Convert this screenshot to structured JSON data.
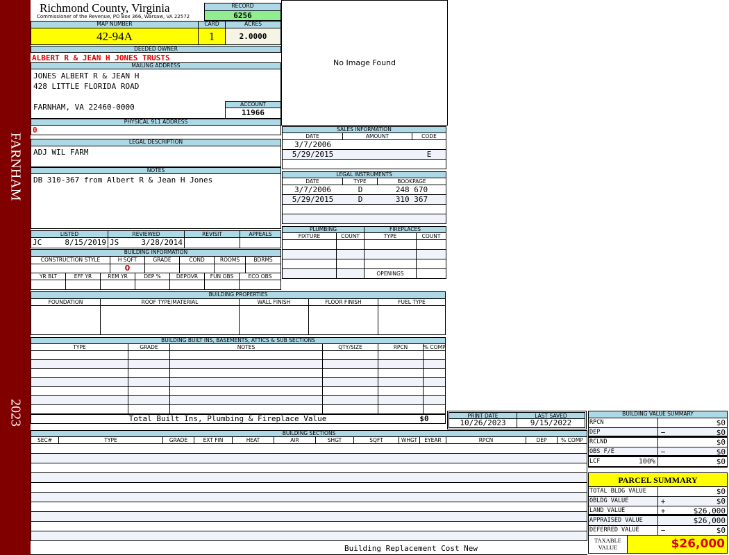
{
  "side": {
    "town": "FARNHAM",
    "year": "2023"
  },
  "header": {
    "county": "Richmond County, Virginia",
    "office": "Commissioner of the Revenue, PO Box 366, Warsaw, VA 22572",
    "record_label": "RECORD",
    "record": "6256"
  },
  "parcel": {
    "map_label": "MAP NUMBER",
    "map": "42-94A",
    "card_label": "CARD",
    "card": "1",
    "acres_label": "ACRES",
    "acres": "2.0000"
  },
  "owner": {
    "label": "DEEDED OWNER",
    "value": "ALBERT R & JEAN H JONES TRUSTS"
  },
  "mailing": {
    "label": "MAILING ADDRESS",
    "line1": "JONES ALBERT R & JEAN H",
    "line2": "428 LITTLE FLORIDA ROAD",
    "line3": "FARNHAM, VA 22460-0000",
    "account_label": "ACCOUNT",
    "account": "11966"
  },
  "physical": {
    "label": "PHYSICAL 911 ADDRESS",
    "value": "0"
  },
  "image": {
    "text": "No Image Found"
  },
  "legal": {
    "label": "LEGAL DESCRIPTION",
    "value": "ADJ WIL FARM"
  },
  "notes": {
    "label": "NOTES",
    "value": "DB 310-367 from Albert R & Jean H Jones"
  },
  "review": {
    "listed_label": "LISTED",
    "reviewed_label": "REVIEWED",
    "revisit_label": "REVISIT",
    "appeals_label": "APPEALS",
    "listed_by": "JC",
    "listed_date": "8/15/2019",
    "reviewed_by": "JS",
    "reviewed_date": "3/28/2014"
  },
  "building_info": {
    "title": "BUILDING INFORMATION",
    "cols1": [
      "CONSTRUCTION STYLE",
      "H SQFT",
      "GRADE",
      "COND",
      "ROOMS",
      "BDRMS"
    ],
    "hsqft": "0",
    "cols2": [
      "YR BLT",
      "EFF YR",
      "REM YR",
      "DEP %",
      "DEPOVR",
      "FUN OBS",
      "ECO OBS"
    ]
  },
  "sales": {
    "title": "SALES INFORMATION",
    "cols": [
      "DATE",
      "AMOUNT",
      "CODE"
    ],
    "rows": [
      {
        "date": "3/7/2006",
        "amount": "",
        "code": ""
      },
      {
        "date": "5/29/2015",
        "amount": "",
        "code": "E"
      }
    ]
  },
  "instruments": {
    "title": "LEGAL INSTRUMENTS",
    "cols": [
      "DATE",
      "TYPE",
      "BOOKPAGE"
    ],
    "rows": [
      {
        "date": "3/7/2006",
        "type": "D",
        "bookpage": "248 670"
      },
      {
        "date": "5/29/2015",
        "type": "D",
        "bookpage": "310 367"
      }
    ]
  },
  "plumbing": {
    "title": "PLUMBING",
    "cols": [
      "FIXTURE",
      "COUNT"
    ]
  },
  "fireplaces": {
    "title": "FIREPLACES",
    "cols": [
      "TYPE",
      "COUNT"
    ],
    "openings": "OPENINGS"
  },
  "properties": {
    "title": "BUILDING PROPERTIES",
    "cols": [
      "FOUNDATION",
      "ROOF TYPE/MATERIAL",
      "WALL FINISH",
      "FLOOR FINISH",
      "FUEL TYPE"
    ]
  },
  "builtins": {
    "title": "BUILDING BUILT INS, BASEMENTS, ATTICS & SUB SECTIONS",
    "cols": [
      "TYPE",
      "GRADE",
      "NOTES",
      "QTY/SIZE",
      "RPCN",
      "% COMP"
    ],
    "total_label": "Total Built Ins, Plumbing & Fireplace Value",
    "total": "$0"
  },
  "dates": {
    "print_label": "PRINT DATE",
    "print": "10/26/2023",
    "saved_label": "LAST SAVED",
    "saved": "9/15/2022"
  },
  "sections": {
    "title": "BUILDING SECTIONS",
    "cols": [
      "SEC#",
      "TYPE",
      "GRADE",
      "EXT FIN",
      "HEAT",
      "AIR",
      "SHGT",
      "SQFT",
      "WHGT",
      "EYEAR",
      "RPCN",
      "DEP",
      "% COMP"
    ],
    "footer": "Building Replacement Cost New"
  },
  "bvs": {
    "title": "BUILDING VALUE SUMMARY",
    "rows": [
      {
        "label": "RPCN",
        "op": "",
        "value": "$0"
      },
      {
        "label": "DEP",
        "op": "−",
        "value": "$0"
      },
      {
        "label": "RCLND",
        "op": "",
        "value": "$0"
      },
      {
        "label": "OBS F/E",
        "op": "−",
        "value": "$0"
      },
      {
        "label": "LCF",
        "extra": "100%",
        "op": "",
        "value": "$0"
      }
    ]
  },
  "ps": {
    "title": "PARCEL SUMMARY",
    "rows": [
      {
        "label": "TOTAL BLDG VALUE",
        "op": "",
        "value": "$0"
      },
      {
        "label": "OBLDG VALUE",
        "op": "+",
        "value": "$0"
      },
      {
        "label": "LAND VALUE",
        "op": "+",
        "value": "$26,000"
      },
      {
        "label": "APPRAISED VALUE",
        "op": "",
        "value": "$26,000"
      },
      {
        "label": "DEFERRED VALUE",
        "op": "−",
        "value": "$0"
      }
    ],
    "taxable_label": "TAXABLE VALUE",
    "taxable": "$26,000"
  },
  "colors": {
    "sidebar": "#800000",
    "header": "#add8e6",
    "highlight": "#ffff00",
    "record": "#90ee90",
    "owner": "#e00000"
  }
}
